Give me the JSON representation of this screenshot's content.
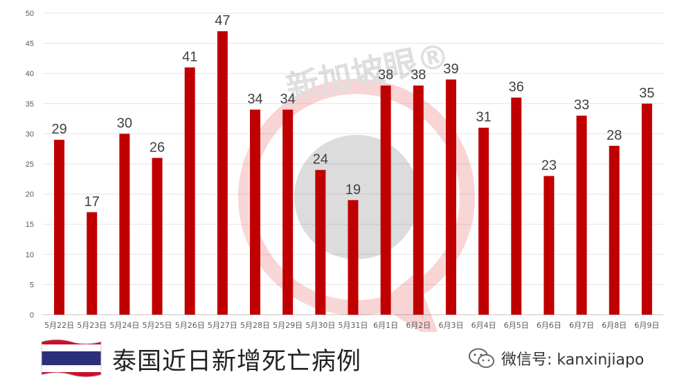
{
  "chart_data": {
    "type": "bar",
    "categories": [
      "5月22日",
      "5月23日",
      "5月24日",
      "5月25日",
      "5月26日",
      "5月27日",
      "5月28日",
      "5月29日",
      "5月30日",
      "5月31日",
      "6月1日",
      "6月2日",
      "6月3日",
      "6月4日",
      "6月5日",
      "6月6日",
      "6月7日",
      "6月8日",
      "6月9日"
    ],
    "values": [
      29,
      17,
      30,
      26,
      41,
      47,
      34,
      34,
      24,
      19,
      38,
      38,
      39,
      31,
      36,
      23,
      33,
      28,
      35
    ],
    "title": "",
    "xlabel": "",
    "ylabel": "",
    "ylim": [
      0,
      50
    ],
    "yticks": [
      0,
      5,
      10,
      15,
      20,
      25,
      30,
      35,
      40,
      45,
      50
    ],
    "grid": true,
    "bar_color": "#c00000"
  },
  "watermark_text": "新加坡眼®",
  "footer": {
    "caption": "泰国近日新增死亡病例",
    "wechat_label": "微信号: kanxinjiapo",
    "flag_icon": "thailand-flag-icon",
    "wechat_icon": "wechat-icon"
  }
}
